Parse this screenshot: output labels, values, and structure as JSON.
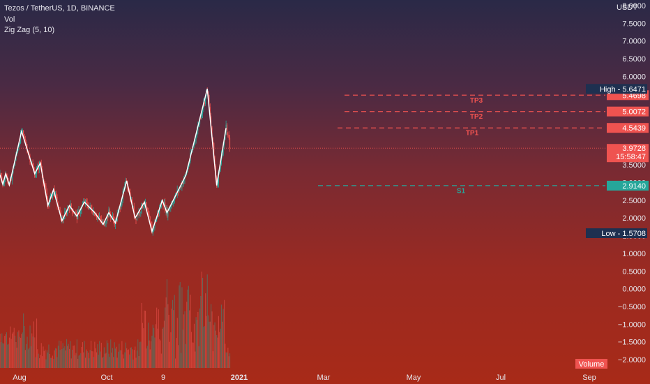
{
  "legend": {
    "symbol": "Tezos / TetherUS, 1D, BINANCE",
    "volume": "Vol",
    "indicator": "Zig Zag (5, 10)"
  },
  "currency": "USDT",
  "volume_label": "Volume",
  "colors": {
    "up": "#26a69a",
    "down": "#ef5350",
    "zigzag": "#ffffff",
    "resistance": "#ef5350",
    "support": "#26a69a",
    "hl_tag": "#1e3050"
  },
  "chart_data": {
    "type": "candlestick",
    "y_axis": {
      "min": -2.0,
      "max": 8.0,
      "ticks": [
        "8.0000",
        "7.5000",
        "7.0000",
        "6.5000",
        "6.0000",
        "5.5000",
        "5.0000",
        "4.5000",
        "4.0000",
        "3.5000",
        "3.0000",
        "2.5000",
        "2.0000",
        "1.5000",
        "1.0000",
        "0.5000",
        "0.0000",
        "−0.5000",
        "−1.0000",
        "−1.5000",
        "−2.0000"
      ]
    },
    "x_axis": {
      "ticks": [
        "Aug",
        "Oct",
        "9",
        "2021",
        "Mar",
        "May",
        "Jul",
        "Sep"
      ],
      "bold": "2021"
    },
    "zigzag": [
      {
        "date": "2020-07-14",
        "price": 3.22
      },
      {
        "date": "2020-07-17",
        "price": 2.95
      },
      {
        "date": "2020-07-20",
        "price": 3.25
      },
      {
        "date": "2020-07-24",
        "price": 2.93
      },
      {
        "date": "2020-08-06",
        "price": 4.45
      },
      {
        "date": "2020-08-20",
        "price": 3.25
      },
      {
        "date": "2020-08-26",
        "price": 3.55
      },
      {
        "date": "2020-09-03",
        "price": 2.35
      },
      {
        "date": "2020-09-09",
        "price": 2.8
      },
      {
        "date": "2020-09-18",
        "price": 1.92
      },
      {
        "date": "2020-09-26",
        "price": 2.35
      },
      {
        "date": "2020-10-04",
        "price": 2.05
      },
      {
        "date": "2020-10-12",
        "price": 2.45
      },
      {
        "date": "2020-10-23",
        "price": 2.15
      },
      {
        "date": "2020-11-01",
        "price": 1.82
      },
      {
        "date": "2020-11-07",
        "price": 2.15
      },
      {
        "date": "2020-11-14",
        "price": 1.86
      },
      {
        "date": "2020-11-26",
        "price": 3.05
      },
      {
        "date": "2020-12-05",
        "price": 2.0
      },
      {
        "date": "2020-12-15",
        "price": 2.45
      },
      {
        "date": "2020-12-23",
        "price": 1.62
      },
      {
        "date": "2021-01-03",
        "price": 2.5
      },
      {
        "date": "2021-01-08",
        "price": 2.15
      },
      {
        "date": "2021-01-28",
        "price": 3.2
      },
      {
        "date": "2021-02-20",
        "price": 5.65
      },
      {
        "date": "2021-03-02",
        "price": 2.92
      },
      {
        "date": "2021-03-12",
        "price": 4.54
      }
    ],
    "levels": [
      {
        "name": "TP3",
        "price": 5.4698,
        "label": "5.4698",
        "kind": "resistance"
      },
      {
        "name": "TP2",
        "price": 5.0072,
        "label": "5.0072",
        "kind": "resistance"
      },
      {
        "name": "TP1",
        "price": 4.5439,
        "label": "4.5439",
        "kind": "resistance"
      },
      {
        "name": "S1",
        "price": 2.914,
        "label": "2.9140",
        "kind": "support"
      }
    ],
    "high": {
      "label": "High",
      "value": "5.6471"
    },
    "low": {
      "label": "Low",
      "value": "1.5708"
    },
    "last_price": {
      "value": "3.9728",
      "countdown": "15:58:47"
    }
  }
}
